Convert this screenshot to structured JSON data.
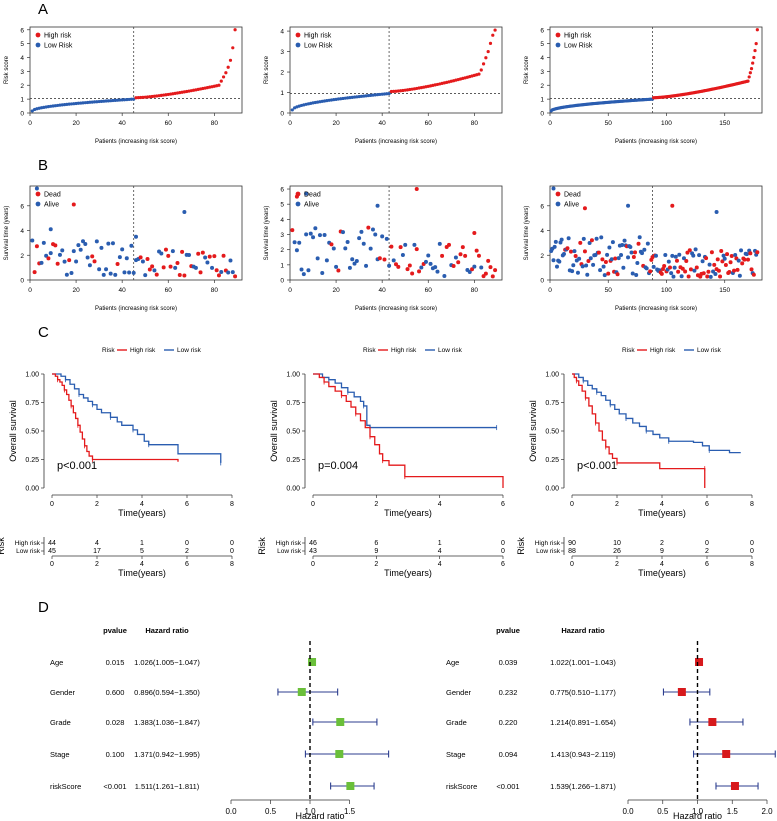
{
  "panels": {
    "A": "A",
    "B": "B",
    "C": "C",
    "D": "D"
  },
  "colors": {
    "high": "#e41a1c",
    "low": "#2a5db0",
    "green": "#6abf3a",
    "red": "#d7191c",
    "navy": "#2c3e8f"
  },
  "chart_data": [
    {
      "type": "scatter",
      "panel": "A",
      "ylabel": "Risk score",
      "xlabel": "Patients (increasing risk score)",
      "legend": [
        "High risk",
        "Low Risk"
      ],
      "cutoff_x": 45,
      "cutoff_y": 1.05,
      "xlim": [
        0,
        92
      ],
      "ylim": [
        0,
        6.2
      ],
      "xticks": [
        0,
        20,
        40,
        60,
        80
      ],
      "yticks": [
        0,
        1,
        2,
        3,
        4,
        5,
        6
      ],
      "n_low": 45,
      "n_high": 44,
      "low_range": [
        0.15,
        1.0
      ],
      "high_range": [
        1.1,
        2.0
      ],
      "high_tail": [
        2.3,
        2.6,
        2.9,
        3.3,
        3.8,
        4.7,
        6.0
      ]
    },
    {
      "type": "scatter",
      "panel": "A",
      "ylabel": "Risk score",
      "xlabel": "Patients (increasing risk score)",
      "legend": [
        "High risk",
        "Low Risk"
      ],
      "cutoff_x": 43,
      "cutoff_y": 0.95,
      "xlim": [
        0,
        92
      ],
      "ylim": [
        0,
        4.2
      ],
      "xticks": [
        0,
        20,
        40,
        60,
        80
      ],
      "yticks": [
        0,
        1,
        2,
        3,
        4
      ],
      "n_low": 43,
      "n_high": 46,
      "low_range": [
        0.15,
        0.95
      ],
      "high_range": [
        1.05,
        1.9
      ],
      "high_tail": [
        2.1,
        2.4,
        2.7,
        3.0,
        3.4,
        3.8,
        4.05
      ]
    },
    {
      "type": "scatter",
      "panel": "A",
      "ylabel": "Risk score",
      "xlabel": "Patients (increasing risk score)",
      "legend": [
        "High risk",
        "Low Risk"
      ],
      "cutoff_x": 88,
      "cutoff_y": 1.05,
      "xlim": [
        0,
        182
      ],
      "ylim": [
        0,
        6.2
      ],
      "xticks": [
        0,
        50,
        100,
        150
      ],
      "yticks": [
        0,
        1,
        2,
        3,
        4,
        5,
        6
      ],
      "n_low": 88,
      "n_high": 90,
      "low_range": [
        0.15,
        1.0
      ],
      "high_range": [
        1.1,
        2.3
      ],
      "high_tail": [
        2.6,
        2.9,
        3.2,
        3.6,
        4.0,
        4.5,
        5.0,
        6.0
      ]
    },
    {
      "type": "scatter",
      "panel": "B",
      "ylabel": "Survival time (years)",
      "xlabel": "Patients (increasing risk score)",
      "legend": [
        "Dead",
        "Alive"
      ],
      "cutoff_x": 45,
      "xlim": [
        0,
        92
      ],
      "ylim": [
        0,
        7.6
      ],
      "xticks": [
        0,
        20,
        40,
        60,
        80
      ],
      "yticks": [
        0,
        2,
        4,
        6
      ],
      "n": 89,
      "seed": 11,
      "highlights": [
        [
          3,
          7.4,
          "low"
        ],
        [
          19,
          6.1,
          "high"
        ],
        [
          67,
          5.5,
          "low"
        ],
        [
          46,
          3.5,
          "low"
        ],
        [
          9,
          4.1,
          "low"
        ]
      ]
    },
    {
      "type": "scatter",
      "panel": "B",
      "ylabel": "Survival time (years)",
      "xlabel": "Patients (increasing risk score)",
      "legend": [
        "Dead",
        "Alive"
      ],
      "cutoff_x": 43,
      "xlim": [
        0,
        92
      ],
      "ylim": [
        0,
        6.2
      ],
      "xticks": [
        0,
        20,
        40,
        60,
        80
      ],
      "yticks": [
        0,
        1,
        2,
        3,
        4,
        5,
        6
      ],
      "n": 89,
      "seed": 23,
      "highlights": [
        [
          55,
          6.0,
          "high"
        ],
        [
          3,
          5.5,
          "high"
        ],
        [
          7,
          5.7,
          "low"
        ],
        [
          38,
          4.9,
          "low"
        ],
        [
          80,
          3.1,
          "high"
        ]
      ]
    },
    {
      "type": "scatter",
      "panel": "B",
      "ylabel": "Survival time (years)",
      "xlabel": "Patients (increasing risk score)",
      "legend": [
        "Dead",
        "Alive"
      ],
      "cutoff_x": 88,
      "xlim": [
        0,
        182
      ],
      "ylim": [
        0,
        7.6
      ],
      "xticks": [
        0,
        50,
        100,
        150
      ],
      "yticks": [
        0,
        2,
        4,
        6
      ],
      "n": 178,
      "seed": 37,
      "highlights": [
        [
          3,
          7.4,
          "low"
        ],
        [
          105,
          6.0,
          "high"
        ],
        [
          143,
          5.5,
          "low"
        ],
        [
          67,
          6.0,
          "low"
        ],
        [
          30,
          5.8,
          "high"
        ]
      ]
    },
    {
      "type": "line",
      "panel": "C",
      "title_legend": "Risk",
      "legend": [
        "High risk",
        "Low risk"
      ],
      "xlabel": "Time(years)",
      "ylabel": "Overall survival",
      "pvalue": "p<0.001",
      "xlim": [
        0,
        8
      ],
      "ylim": [
        0,
        1.0
      ],
      "xticks": [
        0,
        2,
        4,
        6,
        8
      ],
      "yticks": [
        "0.00",
        "0.25",
        "0.50",
        "0.75",
        "1.00"
      ],
      "high": [
        [
          0,
          1
        ],
        [
          0.15,
          0.98
        ],
        [
          0.25,
          0.95
        ],
        [
          0.35,
          0.93
        ],
        [
          0.45,
          0.9
        ],
        [
          0.55,
          0.86
        ],
        [
          0.65,
          0.82
        ],
        [
          0.75,
          0.77
        ],
        [
          0.85,
          0.72
        ],
        [
          0.95,
          0.66
        ],
        [
          1.05,
          0.61
        ],
        [
          1.15,
          0.55
        ],
        [
          1.25,
          0.49
        ],
        [
          1.35,
          0.43
        ],
        [
          1.45,
          0.37
        ],
        [
          1.55,
          0.32
        ],
        [
          1.65,
          0.28
        ],
        [
          1.8,
          0.25
        ],
        [
          5.6,
          0.25
        ],
        [
          5.6,
          0.23
        ]
      ],
      "low": [
        [
          0,
          1
        ],
        [
          0.4,
          0.98
        ],
        [
          0.6,
          0.95
        ],
        [
          0.8,
          0.91
        ],
        [
          1.0,
          0.87
        ],
        [
          1.2,
          0.82
        ],
        [
          1.4,
          0.79
        ],
        [
          1.6,
          0.76
        ],
        [
          1.8,
          0.73
        ],
        [
          2.0,
          0.69
        ],
        [
          2.2,
          0.66
        ],
        [
          2.6,
          0.62
        ],
        [
          2.9,
          0.58
        ],
        [
          3.1,
          0.55
        ],
        [
          3.6,
          0.51
        ],
        [
          3.8,
          0.47
        ],
        [
          4.1,
          0.41
        ],
        [
          4.3,
          0.38
        ],
        [
          5.6,
          0.38
        ],
        [
          5.6,
          0.3
        ],
        [
          7.5,
          0.22
        ]
      ],
      "risk_table": {
        "title": "Risk",
        "rows": [
          [
            "High risk",
            "44",
            "4",
            "1",
            "0",
            "0"
          ],
          [
            "Low risk",
            "45",
            "17",
            "5",
            "2",
            "0"
          ]
        ],
        "xlabel": "Time(years)"
      }
    },
    {
      "type": "line",
      "panel": "C",
      "title_legend": "Risk",
      "legend": [
        "High risk",
        "Low risk"
      ],
      "xlabel": "Time(years)",
      "ylabel": "Overall survival",
      "pvalue": "p=0.004",
      "xlim": [
        0,
        6
      ],
      "ylim": [
        0,
        1.0
      ],
      "xticks": [
        0,
        2,
        4,
        6
      ],
      "yticks": [
        "0.00",
        "0.25",
        "0.50",
        "0.75",
        "1.00"
      ],
      "high": [
        [
          0,
          1
        ],
        [
          0.2,
          0.97
        ],
        [
          0.35,
          0.93
        ],
        [
          0.5,
          0.89
        ],
        [
          0.7,
          0.85
        ],
        [
          0.9,
          0.81
        ],
        [
          1.05,
          0.76
        ],
        [
          1.2,
          0.71
        ],
        [
          1.35,
          0.65
        ],
        [
          1.5,
          0.59
        ],
        [
          1.65,
          0.53
        ],
        [
          1.8,
          0.45
        ],
        [
          1.95,
          0.38
        ],
        [
          2.1,
          0.3
        ],
        [
          2.2,
          0.24
        ],
        [
          2.4,
          0.2
        ],
        [
          2.9,
          0.2
        ],
        [
          2.9,
          0.1
        ],
        [
          6.0,
          0.1
        ],
        [
          6.0,
          0.0
        ]
      ],
      "low": [
        [
          0,
          1
        ],
        [
          0.3,
          0.97
        ],
        [
          0.5,
          0.95
        ],
        [
          0.7,
          0.92
        ],
        [
          0.9,
          0.88
        ],
        [
          1.1,
          0.84
        ],
        [
          1.3,
          0.8
        ],
        [
          1.5,
          0.76
        ],
        [
          1.6,
          0.72
        ],
        [
          1.7,
          0.55
        ],
        [
          1.8,
          0.53
        ],
        [
          5.8,
          0.53
        ]
      ],
      "risk_table": {
        "title": "Risk",
        "rows": [
          [
            "High risk",
            "46",
            "6",
            "1",
            "0"
          ],
          [
            "Low risk",
            "43",
            "9",
            "4",
            "0"
          ]
        ],
        "xlabel": "Time(years)"
      }
    },
    {
      "type": "line",
      "panel": "C",
      "title_legend": "Risk",
      "legend": [
        "High risk",
        "Low risk"
      ],
      "xlabel": "Time(years)",
      "ylabel": "Overall survival",
      "pvalue": "p<0.001",
      "xlim": [
        0,
        8
      ],
      "ylim": [
        0,
        1.0
      ],
      "xticks": [
        0,
        2,
        4,
        6,
        8
      ],
      "yticks": [
        "0.00",
        "0.25",
        "0.50",
        "0.75",
        "1.00"
      ],
      "high": [
        [
          0,
          1
        ],
        [
          0.1,
          0.97
        ],
        [
          0.2,
          0.94
        ],
        [
          0.3,
          0.9
        ],
        [
          0.45,
          0.85
        ],
        [
          0.6,
          0.79
        ],
        [
          0.75,
          0.72
        ],
        [
          0.9,
          0.65
        ],
        [
          1.05,
          0.57
        ],
        [
          1.2,
          0.5
        ],
        [
          1.35,
          0.42
        ],
        [
          1.5,
          0.36
        ],
        [
          1.65,
          0.3
        ],
        [
          1.8,
          0.26
        ],
        [
          2.0,
          0.22
        ],
        [
          3.9,
          0.22
        ],
        [
          3.9,
          0.17
        ],
        [
          5.9,
          0.17
        ],
        [
          5.9,
          0.0
        ]
      ],
      "low": [
        [
          0,
          1
        ],
        [
          0.3,
          0.97
        ],
        [
          0.5,
          0.94
        ],
        [
          0.7,
          0.9
        ],
        [
          0.9,
          0.87
        ],
        [
          1.1,
          0.84
        ],
        [
          1.3,
          0.81
        ],
        [
          1.5,
          0.77
        ],
        [
          1.7,
          0.73
        ],
        [
          1.9,
          0.69
        ],
        [
          2.1,
          0.65
        ],
        [
          2.4,
          0.61
        ],
        [
          2.7,
          0.57
        ],
        [
          3.0,
          0.54
        ],
        [
          3.3,
          0.5
        ],
        [
          3.6,
          0.47
        ],
        [
          3.9,
          0.44
        ],
        [
          4.3,
          0.41
        ],
        [
          5.4,
          0.4
        ],
        [
          5.8,
          0.37
        ],
        [
          6.1,
          0.33
        ],
        [
          7.0,
          0.31
        ],
        [
          7.5,
          0.31
        ]
      ],
      "risk_table": {
        "title": "Risk",
        "rows": [
          [
            "High risk",
            "90",
            "10",
            "2",
            "0",
            "0"
          ],
          [
            "Low risk",
            "88",
            "26",
            "9",
            "2",
            "0"
          ]
        ],
        "xlabel": "Time(years)"
      }
    },
    {
      "type": "forest",
      "panel": "D",
      "headers": [
        "pvalue",
        "Hazard ratio"
      ],
      "xlabel": "Hazard ratio",
      "xlim": [
        0,
        2.0
      ],
      "xticks": [
        "0.0",
        "0.5",
        "1.0",
        "1.5"
      ],
      "ref": 1.0,
      "color": "green",
      "rows": [
        {
          "name": "Age",
          "p": "0.015",
          "hr_text": "1.026(1.005−1.047)",
          "hr": 1.026,
          "lo": 1.005,
          "hi": 1.047
        },
        {
          "name": "Gender",
          "p": "0.600",
          "hr_text": "0.896(0.594−1.350)",
          "hr": 0.896,
          "lo": 0.594,
          "hi": 1.35
        },
        {
          "name": "Grade",
          "p": "0.028",
          "hr_text": "1.383(1.036−1.847)",
          "hr": 1.383,
          "lo": 1.036,
          "hi": 1.847
        },
        {
          "name": "Stage",
          "p": "0.100",
          "hr_text": "1.371(0.942−1.995)",
          "hr": 1.371,
          "lo": 0.942,
          "hi": 1.995
        },
        {
          "name": "riskScore",
          "p": "<0.001",
          "hr_text": "1.511(1.261−1.811)",
          "hr": 1.511,
          "lo": 1.261,
          "hi": 1.811
        }
      ]
    },
    {
      "type": "forest",
      "panel": "D",
      "headers": [
        "pvalue",
        "Hazard ratio"
      ],
      "xlabel": "Hazard ratio",
      "xlim": [
        0,
        2.0
      ],
      "xticks": [
        "0.0",
        "0.5",
        "1.0",
        "1.5",
        "2.0"
      ],
      "ref": 1.0,
      "color": "red",
      "rows": [
        {
          "name": "Age",
          "p": "0.039",
          "hr_text": "1.022(1.001−1.043)",
          "hr": 1.022,
          "lo": 1.001,
          "hi": 1.043
        },
        {
          "name": "Gender",
          "p": "0.232",
          "hr_text": "0.775(0.510−1.177)",
          "hr": 0.775,
          "lo": 0.51,
          "hi": 1.177
        },
        {
          "name": "Grade",
          "p": "0.220",
          "hr_text": "1.214(0.891−1.654)",
          "hr": 1.214,
          "lo": 0.891,
          "hi": 1.654
        },
        {
          "name": "Stage",
          "p": "0.094",
          "hr_text": "1.413(0.943−2.119)",
          "hr": 1.413,
          "lo": 0.943,
          "hi": 2.119
        },
        {
          "name": "riskScore",
          "p": "<0.001",
          "hr_text": "1.539(1.266−1.871)",
          "hr": 1.539,
          "lo": 1.266,
          "hi": 1.871
        }
      ]
    }
  ]
}
